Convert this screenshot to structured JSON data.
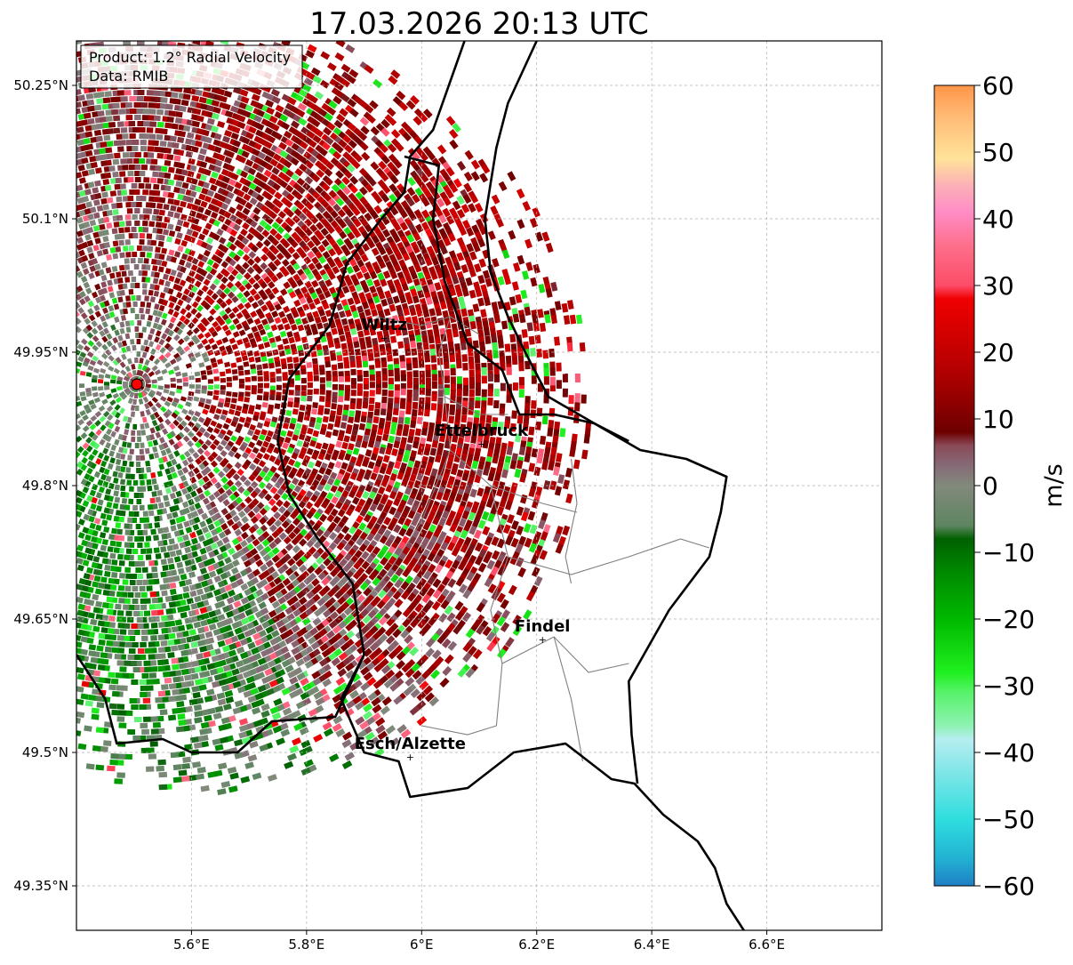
{
  "chart_data": {
    "type": "map",
    "title": "17.03.2026 20:13 UTC",
    "info_box": {
      "product": "Product: 1.2° Radial Velocity",
      "source": "Data: RMIB"
    },
    "axes": {
      "lon_range": [
        5.4,
        6.8
      ],
      "lat_range": [
        49.3,
        50.3
      ],
      "x_ticks": [
        "5.6°E",
        "5.8°E",
        "6°E",
        "6.2°E",
        "6.4°E",
        "6.6°E"
      ],
      "x_tick_values": [
        5.6,
        5.8,
        6.0,
        6.2,
        6.4,
        6.6
      ],
      "y_ticks": [
        "50.25°N",
        "50.1°N",
        "49.95°N",
        "49.8°N",
        "49.65°N",
        "49.5°N",
        "49.35°N"
      ],
      "y_tick_values": [
        50.25,
        50.1,
        49.95,
        49.8,
        49.65,
        49.5,
        49.35
      ],
      "grid": true
    },
    "radar_site": {
      "lon": 5.505,
      "lat": 49.914
    },
    "cities": [
      {
        "name": "Wiltz",
        "lon": 5.935,
        "lat": 49.966
      },
      {
        "name": "Ettelbruck",
        "lon": 6.104,
        "lat": 49.847
      },
      {
        "name": "Findel",
        "lon": 6.21,
        "lat": 49.627
      },
      {
        "name": "Esch/Alzette",
        "lon": 5.98,
        "lat": 49.495
      }
    ],
    "colorbar": {
      "label": "m/s",
      "min": -60,
      "max": 60,
      "ticks": [
        "60",
        "50",
        "40",
        "30",
        "20",
        "10",
        "0",
        "−10",
        "−20",
        "−30",
        "−40",
        "−50",
        "−60"
      ],
      "tick_values": [
        60,
        50,
        40,
        30,
        20,
        10,
        0,
        -10,
        -20,
        -30,
        -40,
        -50,
        -60
      ],
      "stops": [
        {
          "v": -60,
          "c": "#1f7fc4"
        },
        {
          "v": -56,
          "c": "#22b1d3"
        },
        {
          "v": -50,
          "c": "#2fdede"
        },
        {
          "v": -44,
          "c": "#74e4e6"
        },
        {
          "v": -38,
          "c": "#b6eef0"
        },
        {
          "v": -36,
          "c": "#8ef2b2"
        },
        {
          "v": -31,
          "c": "#57f26a"
        },
        {
          "v": -28,
          "c": "#1ff01f"
        },
        {
          "v": -20,
          "c": "#00b800"
        },
        {
          "v": -13,
          "c": "#008a00"
        },
        {
          "v": -8,
          "c": "#006000"
        },
        {
          "v": -6,
          "c": "#5e8560"
        },
        {
          "v": 0,
          "c": "#828a7c"
        },
        {
          "v": 3,
          "c": "#866a76"
        },
        {
          "v": 6,
          "c": "#8a4a58"
        },
        {
          "v": 8,
          "c": "#6e0000"
        },
        {
          "v": 18,
          "c": "#b80000"
        },
        {
          "v": 28,
          "c": "#f00000"
        },
        {
          "v": 30,
          "c": "#fc4c68"
        },
        {
          "v": 36,
          "c": "#fd6f8a"
        },
        {
          "v": 41,
          "c": "#ff8cc7"
        },
        {
          "v": 45,
          "c": "#fbb0b6"
        },
        {
          "v": 49,
          "c": "#ffe39a"
        },
        {
          "v": 55,
          "c": "#ffbd78"
        },
        {
          "v": 60,
          "c": "#ff9548"
        }
      ]
    },
    "borders": {
      "national_west": [
        [
          6.08,
          50.31
        ],
        [
          6.02,
          50.2
        ],
        [
          5.98,
          50.17
        ],
        [
          5.97,
          50.13
        ],
        [
          5.93,
          50.1
        ],
        [
          5.87,
          50.05
        ],
        [
          5.84,
          49.98
        ],
        [
          5.77,
          49.92
        ],
        [
          5.75,
          49.85
        ],
        [
          5.77,
          49.79
        ],
        [
          5.82,
          49.74
        ],
        [
          5.88,
          49.69
        ],
        [
          5.9,
          49.61
        ],
        [
          5.85,
          49.54
        ],
        [
          5.74,
          49.535
        ],
        [
          5.68,
          49.5
        ],
        [
          5.6,
          49.5
        ],
        [
          5.55,
          49.515
        ],
        [
          5.47,
          49.51
        ],
        [
          5.45,
          49.56
        ],
        [
          5.4,
          49.61
        ]
      ],
      "national_south": [
        [
          5.9,
          49.61
        ],
        [
          5.86,
          49.56
        ],
        [
          5.9,
          49.5
        ],
        [
          5.96,
          49.49
        ],
        [
          5.98,
          49.45
        ],
        [
          6.08,
          49.46
        ],
        [
          6.16,
          49.5
        ],
        [
          6.25,
          49.51
        ],
        [
          6.33,
          49.47
        ],
        [
          6.37,
          49.465
        ],
        [
          6.42,
          49.43
        ],
        [
          6.48,
          49.4
        ],
        [
          6.51,
          49.37
        ],
        [
          6.53,
          49.33
        ],
        [
          6.56,
          49.3
        ]
      ],
      "national_east": [
        [
          6.375,
          49.465
        ],
        [
          6.365,
          49.52
        ],
        [
          6.36,
          49.58
        ],
        [
          6.43,
          49.66
        ],
        [
          6.5,
          49.72
        ],
        [
          6.52,
          49.77
        ],
        [
          6.53,
          49.81
        ],
        [
          6.46,
          49.83
        ],
        [
          6.38,
          49.84
        ],
        [
          6.3,
          49.87
        ],
        [
          6.22,
          49.9
        ],
        [
          6.18,
          49.95
        ],
        [
          6.15,
          49.99
        ],
        [
          6.12,
          50.04
        ],
        [
          6.11,
          50.1
        ],
        [
          6.12,
          50.14
        ],
        [
          6.13,
          50.18
        ],
        [
          6.15,
          50.23
        ],
        [
          6.2,
          50.3
        ]
      ],
      "national_inner": [
        [
          6.36,
          49.85
        ],
        [
          6.3,
          49.87
        ],
        [
          6.23,
          49.88
        ],
        [
          6.17,
          49.88
        ],
        [
          6.14,
          49.93
        ],
        [
          6.08,
          49.96
        ],
        [
          6.04,
          50.03
        ],
        [
          6.02,
          50.1
        ],
        [
          6.03,
          50.16
        ],
        [
          5.97,
          50.17
        ]
      ],
      "cantons": [
        [
          [
            5.92,
            49.99
          ],
          [
            6.0,
            49.98
          ],
          [
            6.05,
            49.99
          ],
          [
            6.1,
            49.97
          ]
        ],
        [
          [
            6.05,
            49.99
          ],
          [
            6.03,
            49.95
          ],
          [
            6.04,
            49.9
          ],
          [
            6.1,
            49.88
          ],
          [
            6.15,
            49.88
          ]
        ],
        [
          [
            6.04,
            49.9
          ],
          [
            6.05,
            49.84
          ],
          [
            6.12,
            49.8
          ],
          [
            6.21,
            49.78
          ],
          [
            6.27,
            49.77
          ]
        ],
        [
          [
            6.12,
            49.8
          ],
          [
            6.15,
            49.72
          ],
          [
            6.26,
            49.7
          ],
          [
            6.36,
            49.72
          ],
          [
            6.45,
            49.74
          ],
          [
            6.5,
            49.73
          ]
        ],
        [
          [
            6.26,
            49.83
          ],
          [
            6.27,
            49.78
          ],
          [
            6.25,
            49.72
          ],
          [
            6.26,
            49.69
          ]
        ],
        [
          [
            6.05,
            49.84
          ],
          [
            6.0,
            49.76
          ],
          [
            5.94,
            49.7
          ],
          [
            5.86,
            49.64
          ]
        ],
        [
          [
            6.15,
            49.72
          ],
          [
            6.12,
            49.66
          ],
          [
            6.14,
            49.6
          ],
          [
            6.23,
            49.63
          ],
          [
            6.29,
            49.59
          ],
          [
            6.36,
            49.6
          ]
        ],
        [
          [
            6.14,
            49.6
          ],
          [
            6.13,
            49.53
          ],
          [
            6.08,
            49.52
          ],
          [
            6.0,
            49.53
          ]
        ],
        [
          [
            6.23,
            49.63
          ],
          [
            6.26,
            49.56
          ],
          [
            6.28,
            49.49
          ]
        ]
      ]
    }
  }
}
